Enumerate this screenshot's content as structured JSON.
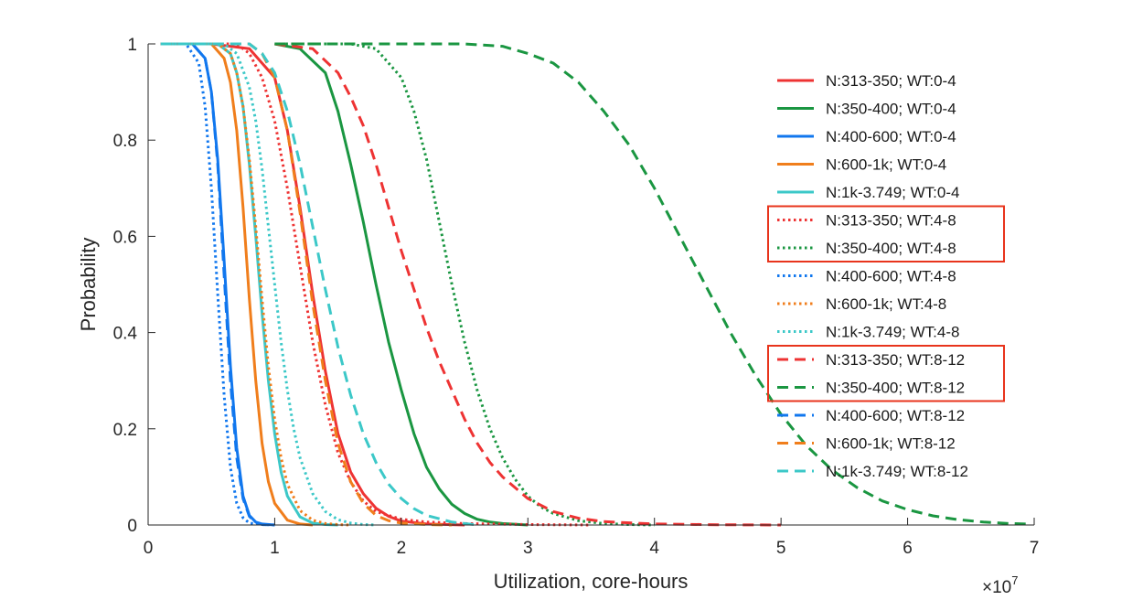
{
  "chart_data": {
    "type": "line",
    "title": "",
    "xlabel": "Utilization, core-hours",
    "ylabel": "Probability",
    "x_exponent_label": "×10",
    "x_exponent_power": "7",
    "xlim": [
      0,
      7
    ],
    "ylim": [
      0,
      1
    ],
    "x_ticks": [
      0,
      1,
      2,
      3,
      4,
      5,
      6,
      7
    ],
    "x_tick_labels": [
      "0",
      "1",
      "2",
      "3",
      "4",
      "5",
      "6",
      "7"
    ],
    "y_ticks": [
      0,
      0.2,
      0.4,
      0.6,
      0.8,
      1
    ],
    "y_tick_labels": [
      "0",
      "0.2",
      "0.4",
      "0.6",
      "0.8",
      "1"
    ],
    "grid": false,
    "legend_position": "right",
    "highlight_boxes": [
      {
        "legend_entries": [
          5,
          6
        ],
        "color": "#e8341c"
      },
      {
        "legend_entries": [
          10,
          11
        ],
        "color": "#e8341c"
      }
    ],
    "series": [
      {
        "name": "N:313-350; WT:0-4",
        "color": "#ee3333",
        "dash": "solid",
        "x": [
          0.1,
          0.5,
          0.8,
          1.0,
          1.1,
          1.2,
          1.3,
          1.4,
          1.5,
          1.6,
          1.7,
          1.8,
          1.9,
          2.0,
          2.2,
          2.5
        ],
        "y": [
          1.0,
          1.0,
          0.99,
          0.93,
          0.82,
          0.66,
          0.48,
          0.32,
          0.19,
          0.11,
          0.065,
          0.035,
          0.018,
          0.008,
          0.002,
          0.0
        ]
      },
      {
        "name": "N:350-400; WT:0-4",
        "color": "#1a9641",
        "dash": "solid",
        "x": [
          1.0,
          1.2,
          1.4,
          1.5,
          1.6,
          1.7,
          1.8,
          1.9,
          2.0,
          2.1,
          2.2,
          2.3,
          2.4,
          2.5,
          2.6,
          2.7,
          2.8,
          3.0
        ],
        "y": [
          1.0,
          0.99,
          0.94,
          0.86,
          0.75,
          0.63,
          0.5,
          0.38,
          0.28,
          0.19,
          0.12,
          0.075,
          0.043,
          0.024,
          0.012,
          0.006,
          0.003,
          0.0
        ]
      },
      {
        "name": "N:400-600; WT:0-4",
        "color": "#1177ee",
        "dash": "solid",
        "x": [
          0.1,
          0.35,
          0.45,
          0.5,
          0.55,
          0.6,
          0.65,
          0.7,
          0.75,
          0.8,
          0.85,
          0.9,
          1.0
        ],
        "y": [
          1.0,
          1.0,
          0.97,
          0.9,
          0.76,
          0.55,
          0.33,
          0.16,
          0.06,
          0.02,
          0.006,
          0.002,
          0.0
        ]
      },
      {
        "name": "N:600-1k; WT:0-4",
        "color": "#f07e1c",
        "dash": "solid",
        "x": [
          0.1,
          0.5,
          0.6,
          0.65,
          0.7,
          0.75,
          0.8,
          0.85,
          0.9,
          0.95,
          1.0,
          1.1,
          1.2,
          1.3
        ],
        "y": [
          1.0,
          1.0,
          0.97,
          0.92,
          0.82,
          0.66,
          0.47,
          0.3,
          0.17,
          0.09,
          0.045,
          0.01,
          0.002,
          0.0
        ]
      },
      {
        "name": "N:1k-3.749; WT:0-4",
        "color": "#3cc8c8",
        "dash": "solid",
        "x": [
          0.1,
          0.55,
          0.65,
          0.7,
          0.75,
          0.8,
          0.85,
          0.9,
          0.95,
          1.0,
          1.05,
          1.1,
          1.2,
          1.3,
          1.4,
          1.5
        ],
        "y": [
          1.0,
          1.0,
          0.98,
          0.94,
          0.87,
          0.75,
          0.6,
          0.44,
          0.3,
          0.19,
          0.11,
          0.06,
          0.017,
          0.004,
          0.001,
          0.0
        ]
      },
      {
        "name": "N:313-350; WT:4-8",
        "color": "#ee3333",
        "dash": "dotted",
        "x": [
          0.1,
          0.7,
          0.8,
          0.9,
          1.0,
          1.1,
          1.2,
          1.3,
          1.4,
          1.5,
          1.6,
          1.7,
          1.8,
          2.0,
          2.2,
          2.5,
          3.0,
          3.5
        ],
        "y": [
          1.0,
          1.0,
          0.98,
          0.93,
          0.84,
          0.7,
          0.54,
          0.38,
          0.25,
          0.15,
          0.09,
          0.05,
          0.028,
          0.012,
          0.006,
          0.003,
          0.001,
          0.0
        ]
      },
      {
        "name": "N:350-400; WT:4-8",
        "color": "#1a9641",
        "dash": "dotted",
        "x": [
          1.0,
          1.6,
          1.8,
          2.0,
          2.1,
          2.2,
          2.3,
          2.4,
          2.5,
          2.6,
          2.7,
          2.8,
          2.9,
          3.0,
          3.1,
          3.2,
          3.4,
          3.6,
          3.8,
          4.0
        ],
        "y": [
          1.0,
          1.0,
          0.99,
          0.93,
          0.86,
          0.76,
          0.63,
          0.5,
          0.38,
          0.28,
          0.2,
          0.14,
          0.095,
          0.06,
          0.038,
          0.024,
          0.009,
          0.003,
          0.001,
          0.0
        ]
      },
      {
        "name": "N:400-600; WT:4-8",
        "color": "#1177ee",
        "dash": "dotted",
        "x": [
          0.1,
          0.3,
          0.4,
          0.45,
          0.5,
          0.55,
          0.6,
          0.65,
          0.7,
          0.75,
          0.8,
          0.9,
          1.0
        ],
        "y": [
          1.0,
          1.0,
          0.96,
          0.87,
          0.7,
          0.48,
          0.27,
          0.12,
          0.045,
          0.015,
          0.004,
          0.001,
          0.0
        ]
      },
      {
        "name": "N:600-1k; WT:4-8",
        "color": "#f07e1c",
        "dash": "dotted",
        "x": [
          0.1,
          0.55,
          0.65,
          0.7,
          0.75,
          0.8,
          0.85,
          0.9,
          0.95,
          1.0,
          1.05,
          1.1,
          1.2,
          1.3,
          1.4,
          1.5,
          1.6
        ],
        "y": [
          1.0,
          1.0,
          0.98,
          0.94,
          0.87,
          0.76,
          0.62,
          0.47,
          0.33,
          0.22,
          0.14,
          0.085,
          0.03,
          0.01,
          0.003,
          0.001,
          0.0
        ]
      },
      {
        "name": "N:1k-3.749; WT:4-8",
        "color": "#3cc8c8",
        "dash": "dotted",
        "x": [
          0.1,
          0.6,
          0.7,
          0.8,
          0.85,
          0.9,
          0.95,
          1.0,
          1.05,
          1.1,
          1.15,
          1.2,
          1.3,
          1.4,
          1.5,
          1.6,
          1.7,
          1.8
        ],
        "y": [
          1.0,
          1.0,
          0.98,
          0.91,
          0.84,
          0.74,
          0.62,
          0.5,
          0.38,
          0.28,
          0.2,
          0.14,
          0.065,
          0.028,
          0.011,
          0.004,
          0.001,
          0.0
        ]
      },
      {
        "name": "N:313-350; WT:8-12",
        "color": "#ee3333",
        "dash": "dashed",
        "x": [
          1.0,
          1.3,
          1.5,
          1.6,
          1.7,
          1.8,
          1.9,
          2.0,
          2.1,
          2.2,
          2.3,
          2.4,
          2.5,
          2.6,
          2.7,
          2.8,
          3.0,
          3.2,
          3.4,
          3.6,
          4.0,
          4.5,
          5.0
        ],
        "y": [
          1.0,
          0.99,
          0.94,
          0.89,
          0.83,
          0.75,
          0.66,
          0.57,
          0.49,
          0.41,
          0.34,
          0.28,
          0.22,
          0.17,
          0.13,
          0.1,
          0.055,
          0.028,
          0.014,
          0.007,
          0.002,
          0.0005,
          0.0
        ]
      },
      {
        "name": "N:350-400; WT:8-12",
        "color": "#1a9641",
        "dash": "dashed",
        "x": [
          1.0,
          2.0,
          2.5,
          2.8,
          3.0,
          3.2,
          3.4,
          3.6,
          3.8,
          4.0,
          4.2,
          4.4,
          4.6,
          4.8,
          5.0,
          5.2,
          5.4,
          5.6,
          5.8,
          6.0,
          6.2,
          6.4,
          6.6,
          6.8,
          6.95
        ],
        "y": [
          1.0,
          1.0,
          1.0,
          0.995,
          0.98,
          0.96,
          0.92,
          0.86,
          0.79,
          0.7,
          0.6,
          0.5,
          0.4,
          0.31,
          0.23,
          0.165,
          0.115,
          0.078,
          0.05,
          0.032,
          0.019,
          0.011,
          0.006,
          0.003,
          0.002
        ]
      },
      {
        "name": "N:400-600; WT:8-12",
        "color": "#1177ee",
        "dash": "dashed",
        "x": [
          0.1,
          0.35,
          0.45,
          0.5,
          0.55,
          0.6,
          0.65,
          0.7,
          0.75,
          0.8,
          0.85,
          0.9,
          1.0
        ],
        "y": [
          1.0,
          1.0,
          0.97,
          0.9,
          0.75,
          0.52,
          0.3,
          0.14,
          0.055,
          0.018,
          0.005,
          0.001,
          0.0
        ]
      },
      {
        "name": "N:600-1k; WT:8-12",
        "color": "#f07e1c",
        "dash": "dashed",
        "x": [
          0.1,
          0.8,
          0.9,
          1.0,
          1.1,
          1.2,
          1.3,
          1.4,
          1.5,
          1.6,
          1.7,
          1.8,
          1.9,
          2.0,
          2.2,
          2.4
        ],
        "y": [
          1.0,
          1.0,
          0.98,
          0.93,
          0.82,
          0.65,
          0.46,
          0.3,
          0.17,
          0.09,
          0.045,
          0.02,
          0.009,
          0.004,
          0.001,
          0.0
        ]
      },
      {
        "name": "N:1k-3.749; WT:8-12",
        "color": "#3cc8c8",
        "dash": "dashed",
        "x": [
          0.1,
          0.8,
          0.9,
          1.0,
          1.1,
          1.2,
          1.3,
          1.4,
          1.5,
          1.6,
          1.7,
          1.8,
          1.9,
          2.0,
          2.1,
          2.2,
          2.4,
          2.6
        ],
        "y": [
          1.0,
          1.0,
          0.98,
          0.94,
          0.86,
          0.75,
          0.62,
          0.49,
          0.37,
          0.27,
          0.19,
          0.13,
          0.085,
          0.055,
          0.034,
          0.02,
          0.006,
          0.0
        ]
      }
    ]
  }
}
